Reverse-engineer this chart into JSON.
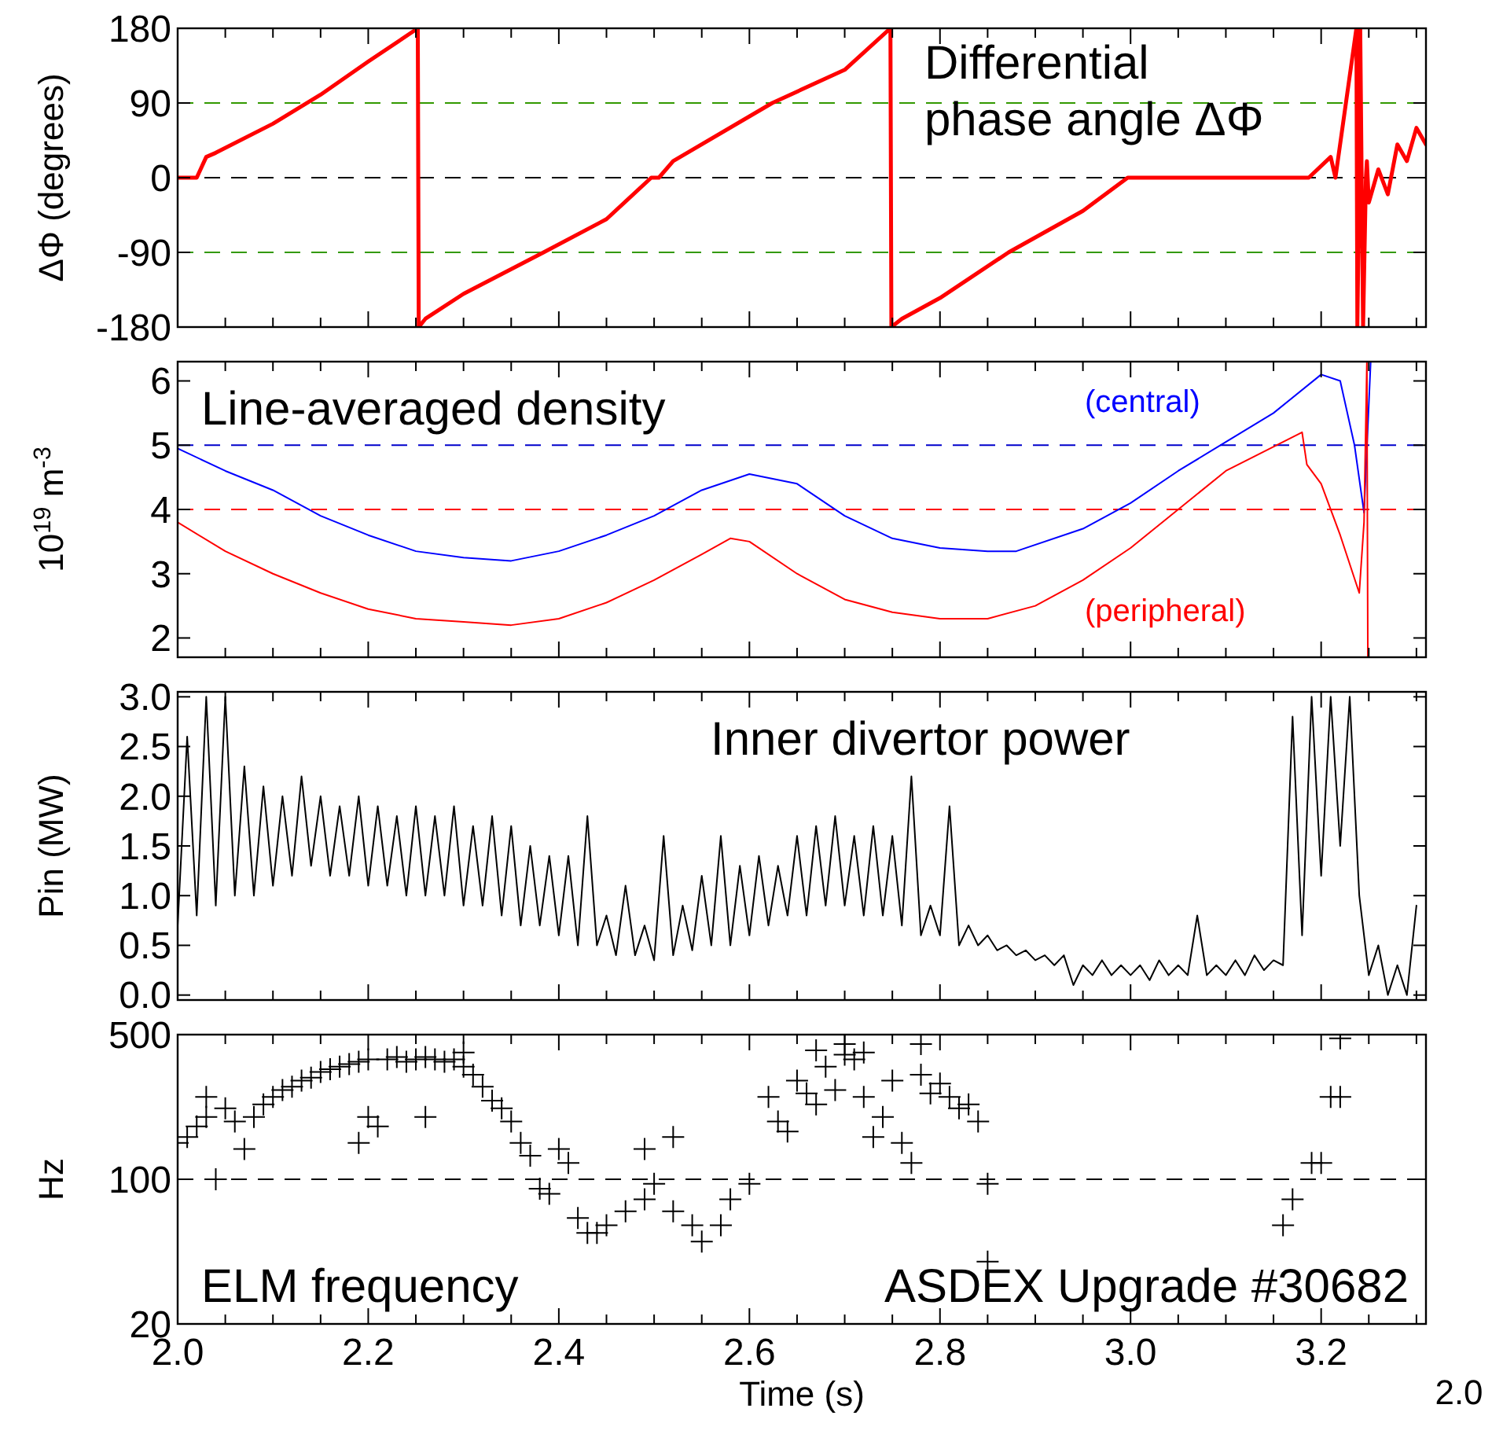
{
  "chart_data": [
    {
      "type": "line",
      "ylabel": "ΔΦ (degrees)",
      "annotations": [
        "Differential phase angle ΔΦ"
      ],
      "xlim": [
        2.0,
        3.31
      ],
      "ylim": [
        -180,
        180
      ],
      "yticks": [
        180,
        90,
        0,
        -90,
        -180
      ],
      "xticks": [
        {
          "value": 2.0,
          "label": null
        },
        {
          "value": 2.05,
          "label": null
        },
        {
          "value": 2.1,
          "label": null
        },
        {
          "value": 2.15,
          "label": null
        },
        {
          "value": 2.2,
          "label": null
        },
        {
          "value": 2.25,
          "label": null
        },
        {
          "value": 2.3,
          "label": null
        },
        {
          "value": 2.35,
          "label": null
        },
        {
          "value": 2.4,
          "label": null
        },
        {
          "value": 2.45,
          "label": null
        },
        {
          "value": 2.5,
          "label": null
        },
        {
          "value": 2.55,
          "label": null
        },
        {
          "value": 2.6,
          "label": null
        },
        {
          "value": 2.65,
          "label": null
        },
        {
          "value": 2.7,
          "label": null
        },
        {
          "value": 2.75,
          "label": null
        },
        {
          "value": 2.8,
          "label": null
        },
        {
          "value": 2.85,
          "label": null
        },
        {
          "value": 2.9,
          "label": null
        },
        {
          "value": 2.95,
          "label": null
        },
        {
          "value": 3.0,
          "label": null
        },
        {
          "value": 3.05,
          "label": null
        },
        {
          "value": 3.1,
          "label": null
        },
        {
          "value": 3.15,
          "label": null
        },
        {
          "value": 3.2,
          "label": null
        },
        {
          "value": 3.25,
          "label": null
        },
        {
          "value": 3.3,
          "label": null
        }
      ],
      "tick_labels": "y",
      "legend": false,
      "line_style": "solid",
      "ref_lines": [
        {
          "axis": "y",
          "value": 90,
          "color": "#339900",
          "line_style": "dashed"
        },
        {
          "axis": "y",
          "value": 0,
          "color": "#000000",
          "line_style": "dashed"
        },
        {
          "axis": "y",
          "value": -90,
          "color": "#339900",
          "line_style": "dashed"
        }
      ],
      "series": [
        {
          "color": "#ff0000",
          "x": [
            2.0,
            2.02,
            2.03,
            2.04,
            2.1,
            2.15,
            2.2,
            2.252,
            2.253,
            2.26,
            2.3,
            2.384,
            2.45,
            2.497,
            2.505,
            2.52,
            2.624,
            2.7,
            2.748,
            2.749,
            2.76,
            2.8,
            2.872,
            2.95,
            2.997,
            3.1,
            3.187,
            3.21,
            3.215,
            3.237,
            3.238,
            3.24,
            3.241,
            3.244,
            3.247,
            3.248,
            3.25,
            3.26,
            3.27,
            3.28,
            3.29,
            3.3,
            3.31
          ],
          "values": [
            0,
            0,
            25,
            30,
            65,
            100,
            140,
            180,
            -180,
            -170,
            -140,
            -90,
            -50,
            0,
            0,
            20,
            90,
            130,
            180,
            -180,
            -170,
            -145,
            -90,
            -40,
            0,
            0,
            0,
            25,
            0,
            180,
            -180,
            0,
            180,
            -180,
            0,
            20,
            -30,
            10,
            -20,
            40,
            20,
            60,
            40
          ]
        }
      ]
    },
    {
      "type": "line",
      "ylabel": "10$^{19}$ m$^{-3}$",
      "annotations": [
        "Line-averaged density"
      ],
      "xlim": [
        2.0,
        3.31
      ],
      "ylim": [
        1.7,
        6.3
      ],
      "yticks": [
        2,
        3,
        4,
        5,
        6
      ],
      "xticks": [
        {
          "value": 2.0,
          "label": null
        },
        {
          "value": 2.05,
          "label": null
        },
        {
          "value": 2.1,
          "label": null
        },
        {
          "value": 2.15,
          "label": null
        },
        {
          "value": 2.2,
          "label": null
        },
        {
          "value": 2.25,
          "label": null
        },
        {
          "value": 2.3,
          "label": null
        },
        {
          "value": 2.35,
          "label": null
        },
        {
          "value": 2.4,
          "label": null
        },
        {
          "value": 2.45,
          "label": null
        },
        {
          "value": 2.5,
          "label": null
        },
        {
          "value": 2.55,
          "label": null
        },
        {
          "value": 2.6,
          "label": null
        },
        {
          "value": 2.65,
          "label": null
        },
        {
          "value": 2.7,
          "label": null
        },
        {
          "value": 2.75,
          "label": null
        },
        {
          "value": 2.8,
          "label": null
        },
        {
          "value": 2.85,
          "label": null
        },
        {
          "value": 2.9,
          "label": null
        },
        {
          "value": 2.95,
          "label": null
        },
        {
          "value": 3.0,
          "label": null
        },
        {
          "value": 3.05,
          "label": null
        },
        {
          "value": 3.1,
          "label": null
        },
        {
          "value": 3.15,
          "label": null
        },
        {
          "value": 3.2,
          "label": null
        },
        {
          "value": 3.25,
          "label": null
        },
        {
          "value": 3.3,
          "label": null
        }
      ],
      "tick_labels": "y",
      "legend": false,
      "line_style": "solid",
      "ref_lines": [
        {
          "axis": "y",
          "value": 5,
          "color": "#0000cc",
          "line_style": "dashed"
        },
        {
          "axis": "y",
          "value": 4,
          "color": "#ff0000",
          "line_style": "dashed"
        }
      ],
      "series": [
        {
          "name": "(central)",
          "color": "#0000ff",
          "x": [
            2.0,
            2.05,
            2.1,
            2.15,
            2.2,
            2.25,
            2.3,
            2.35,
            2.4,
            2.45,
            2.5,
            2.55,
            2.6,
            2.65,
            2.7,
            2.75,
            2.8,
            2.85,
            2.88,
            2.95,
            3.0,
            3.05,
            3.1,
            3.15,
            3.2,
            3.22,
            3.235,
            3.245,
            3.252
          ],
          "values": [
            4.95,
            4.6,
            4.3,
            3.9,
            3.6,
            3.35,
            3.25,
            3.2,
            3.35,
            3.6,
            3.9,
            4.3,
            4.55,
            4.4,
            3.9,
            3.55,
            3.4,
            3.35,
            3.35,
            3.7,
            4.1,
            4.6,
            5.05,
            5.5,
            6.1,
            6.0,
            5.0,
            3.95,
            6.3
          ]
        },
        {
          "name": "(peripheral)",
          "color": "#ff0000",
          "x": [
            2.0,
            2.05,
            2.1,
            2.15,
            2.2,
            2.25,
            2.3,
            2.35,
            2.4,
            2.45,
            2.5,
            2.55,
            2.58,
            2.6,
            2.65,
            2.7,
            2.75,
            2.8,
            2.85,
            2.9,
            2.95,
            3.0,
            3.05,
            3.1,
            3.18,
            3.185,
            3.2,
            3.22,
            3.24,
            3.245,
            3.248,
            3.249
          ],
          "values": [
            3.8,
            3.35,
            3.0,
            2.7,
            2.45,
            2.3,
            2.25,
            2.2,
            2.3,
            2.55,
            2.9,
            3.3,
            3.55,
            3.5,
            3.0,
            2.6,
            2.4,
            2.3,
            2.3,
            2.5,
            2.9,
            3.4,
            4.0,
            4.6,
            5.2,
            4.7,
            4.4,
            3.6,
            2.7,
            3.8,
            6.3,
            1.7
          ]
        }
      ]
    },
    {
      "type": "line",
      "ylabel": "Pin (MW)",
      "annotations": [
        "Inner divertor power"
      ],
      "xlim": [
        2.0,
        3.31
      ],
      "ylim": [
        -0.05,
        3.05
      ],
      "yticks": [
        {
          "value": 0,
          "label": "0.0"
        },
        0.5,
        {
          "value": 1,
          "label": "1.0"
        },
        1.5,
        {
          "value": 2,
          "label": "2.0"
        },
        2.5,
        {
          "value": 3,
          "label": "3.0"
        }
      ],
      "xticks": [
        {
          "value": 2.0,
          "label": null
        },
        {
          "value": 2.05,
          "label": null
        },
        {
          "value": 2.1,
          "label": null
        },
        {
          "value": 2.15,
          "label": null
        },
        {
          "value": 2.2,
          "label": null
        },
        {
          "value": 2.25,
          "label": null
        },
        {
          "value": 2.3,
          "label": null
        },
        {
          "value": 2.35,
          "label": null
        },
        {
          "value": 2.4,
          "label": null
        },
        {
          "value": 2.45,
          "label": null
        },
        {
          "value": 2.5,
          "label": null
        },
        {
          "value": 2.55,
          "label": null
        },
        {
          "value": 2.6,
          "label": null
        },
        {
          "value": 2.65,
          "label": null
        },
        {
          "value": 2.7,
          "label": null
        },
        {
          "value": 2.75,
          "label": null
        },
        {
          "value": 2.8,
          "label": null
        },
        {
          "value": 2.85,
          "label": null
        },
        {
          "value": 2.9,
          "label": null
        },
        {
          "value": 2.95,
          "label": null
        },
        {
          "value": 3.0,
          "label": null
        },
        {
          "value": 3.05,
          "label": null
        },
        {
          "value": 3.1,
          "label": null
        },
        {
          "value": 3.15,
          "label": null
        },
        {
          "value": 3.2,
          "label": null
        },
        {
          "value": 3.25,
          "label": null
        },
        {
          "value": 3.3,
          "label": null
        }
      ],
      "tick_labels": "y",
      "legend": false,
      "line_style": "solid",
      "series": [
        {
          "color": "#000000",
          "x": [
            2.0,
            2.01,
            2.02,
            2.03,
            2.04,
            2.05,
            2.06,
            2.07,
            2.08,
            2.09,
            2.1,
            2.11,
            2.12,
            2.13,
            2.14,
            2.15,
            2.16,
            2.17,
            2.18,
            2.19,
            2.2,
            2.21,
            2.22,
            2.23,
            2.24,
            2.25,
            2.26,
            2.27,
            2.28,
            2.29,
            2.3,
            2.31,
            2.32,
            2.33,
            2.34,
            2.35,
            2.36,
            2.37,
            2.38,
            2.39,
            2.4,
            2.41,
            2.42,
            2.43,
            2.44,
            2.45,
            2.46,
            2.47,
            2.48,
            2.49,
            2.5,
            2.51,
            2.52,
            2.53,
            2.54,
            2.55,
            2.56,
            2.57,
            2.58,
            2.59,
            2.6,
            2.61,
            2.62,
            2.63,
            2.64,
            2.65,
            2.66,
            2.67,
            2.68,
            2.69,
            2.7,
            2.71,
            2.72,
            2.73,
            2.74,
            2.75,
            2.76,
            2.77,
            2.78,
            2.79,
            2.8,
            2.81,
            2.82,
            2.83,
            2.84,
            2.85,
            2.86,
            2.87,
            2.88,
            2.89,
            2.9,
            2.91,
            2.92,
            2.93,
            2.94,
            2.95,
            2.96,
            2.97,
            2.98,
            2.99,
            3.0,
            3.01,
            3.02,
            3.03,
            3.04,
            3.05,
            3.06,
            3.07,
            3.08,
            3.09,
            3.1,
            3.11,
            3.12,
            3.13,
            3.14,
            3.15,
            3.16,
            3.17,
            3.18,
            3.19,
            3.2,
            3.21,
            3.22,
            3.23,
            3.24,
            3.25,
            3.26,
            3.27,
            3.28,
            3.29,
            3.3
          ],
          "values": [
            0.7,
            2.6,
            0.8,
            3.0,
            0.9,
            3.0,
            1.0,
            2.3,
            1.0,
            2.1,
            1.1,
            2.0,
            1.2,
            2.2,
            1.3,
            2.0,
            1.2,
            1.9,
            1.2,
            2.0,
            1.1,
            1.9,
            1.1,
            1.8,
            1.0,
            1.9,
            1.0,
            1.8,
            1.0,
            1.9,
            0.9,
            1.7,
            0.9,
            1.8,
            0.8,
            1.7,
            0.7,
            1.5,
            0.7,
            1.4,
            0.6,
            1.4,
            0.5,
            1.8,
            0.5,
            0.8,
            0.4,
            1.1,
            0.4,
            0.7,
            0.35,
            1.6,
            0.4,
            0.9,
            0.45,
            1.2,
            0.5,
            1.6,
            0.5,
            1.3,
            0.6,
            1.4,
            0.7,
            1.3,
            0.8,
            1.6,
            0.8,
            1.7,
            0.9,
            1.8,
            0.9,
            1.6,
            0.8,
            1.7,
            0.8,
            1.6,
            0.7,
            2.2,
            0.6,
            0.9,
            0.6,
            1.9,
            0.5,
            0.7,
            0.5,
            0.6,
            0.45,
            0.5,
            0.4,
            0.45,
            0.35,
            0.4,
            0.3,
            0.4,
            0.1,
            0.3,
            0.2,
            0.35,
            0.2,
            0.3,
            0.2,
            0.3,
            0.15,
            0.35,
            0.2,
            0.3,
            0.2,
            0.8,
            0.2,
            0.3,
            0.2,
            0.35,
            0.2,
            0.4,
            0.25,
            0.35,
            0.3,
            2.8,
            0.6,
            3.0,
            1.2,
            3.0,
            1.5,
            3.0,
            1.0,
            0.2,
            0.5,
            0.0,
            0.3,
            0.0,
            0.9
          ]
        }
      ]
    },
    {
      "type": "scatter",
      "ylabel": "Hz",
      "xlabel": "Time (s)",
      "annotations": [
        "ELM frequency",
        "ASDEX Upgrade #30682",
        "2.0"
      ],
      "xlim": [
        2.0,
        3.31
      ],
      "ylim": [
        20,
        500
      ],
      "yticks": [
        20,
        100,
        500
      ],
      "log": "y",
      "xticks": [
        {
          "value": 2.0,
          "label": "2.0"
        },
        {
          "value": 2.05,
          "label": null
        },
        {
          "value": 2.1,
          "label": null
        },
        {
          "value": 2.15,
          "label": null
        },
        {
          "value": 2.2,
          "label": "2.2"
        },
        {
          "value": 2.25,
          "label": null
        },
        {
          "value": 2.3,
          "label": null
        },
        {
          "value": 2.35,
          "label": null
        },
        {
          "value": 2.4,
          "label": "2.4"
        },
        {
          "value": 2.45,
          "label": null
        },
        {
          "value": 2.5,
          "label": null
        },
        {
          "value": 2.55,
          "label": null
        },
        {
          "value": 2.6,
          "label": "2.6"
        },
        {
          "value": 2.65,
          "label": null
        },
        {
          "value": 2.7,
          "label": null
        },
        {
          "value": 2.75,
          "label": null
        },
        {
          "value": 2.8,
          "label": "2.8"
        },
        {
          "value": 2.85,
          "label": null
        },
        {
          "value": 2.9,
          "label": null
        },
        {
          "value": 2.95,
          "label": null
        },
        {
          "value": 3.0,
          "label": "3.0"
        },
        {
          "value": 3.05,
          "label": null
        },
        {
          "value": 3.1,
          "label": null
        },
        {
          "value": 3.15,
          "label": null
        },
        {
          "value": 3.2,
          "label": "3.2"
        },
        {
          "value": 3.25,
          "label": null
        },
        {
          "value": 3.3,
          "label": null
        }
      ],
      "legend": false,
      "marker": "cross",
      "ref_lines": [
        {
          "axis": "y",
          "value": 100,
          "color": "#000000",
          "line_style": "dashed"
        }
      ],
      "series": [
        {
          "color": "#000000",
          "x": [
            2.0,
            2.01,
            2.02,
            2.03,
            2.03,
            2.04,
            2.05,
            2.06,
            2.07,
            2.08,
            2.09,
            2.1,
            2.11,
            2.12,
            2.13,
            2.14,
            2.15,
            2.16,
            2.17,
            2.18,
            2.19,
            2.19,
            2.2,
            2.2,
            2.21,
            2.22,
            2.23,
            2.24,
            2.25,
            2.26,
            2.26,
            2.27,
            2.28,
            2.29,
            2.3,
            2.3,
            2.31,
            2.32,
            2.33,
            2.34,
            2.35,
            2.36,
            2.37,
            2.38,
            2.39,
            2.4,
            2.41,
            2.42,
            2.43,
            2.44,
            2.45,
            2.47,
            2.49,
            2.49,
            2.5,
            2.52,
            2.52,
            2.54,
            2.55,
            2.57,
            2.58,
            2.6,
            2.62,
            2.63,
            2.64,
            2.65,
            2.66,
            2.67,
            2.67,
            2.68,
            2.69,
            2.7,
            2.7,
            2.71,
            2.72,
            2.72,
            2.73,
            2.74,
            2.75,
            2.76,
            2.77,
            2.78,
            2.78,
            2.79,
            2.8,
            2.81,
            2.82,
            2.83,
            2.84,
            2.85,
            2.85,
            3.16,
            3.17,
            3.19,
            3.2,
            3.21,
            3.22,
            3.22
          ],
          "values": [
            150,
            160,
            180,
            200,
            250,
            100,
            220,
            190,
            140,
            200,
            230,
            250,
            270,
            280,
            300,
            310,
            330,
            340,
            350,
            360,
            150,
            370,
            380,
            200,
            180,
            380,
            390,
            370,
            380,
            200,
            390,
            380,
            370,
            380,
            350,
            410,
            320,
            280,
            240,
            220,
            190,
            150,
            130,
            90,
            85,
            140,
            120,
            65,
            55,
            55,
            60,
            70,
            140,
            80,
            95,
            70,
            160,
            60,
            50,
            60,
            80,
            95,
            250,
            190,
            170,
            300,
            260,
            230,
            420,
            350,
            270,
            450,
            400,
            380,
            250,
            410,
            160,
            200,
            300,
            150,
            120,
            450,
            320,
            260,
            290,
            250,
            220,
            230,
            190,
            95,
            40,
            60,
            80,
            120,
            120,
            250,
            250,
            480
          ]
        }
      ]
    }
  ]
}
